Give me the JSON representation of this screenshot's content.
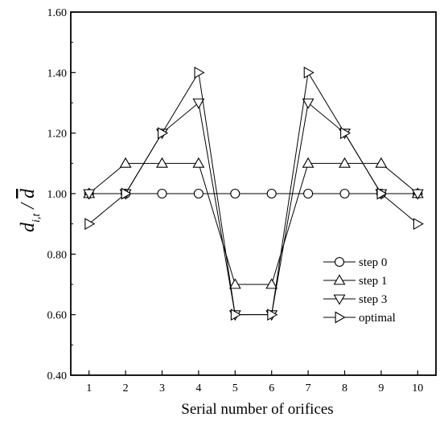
{
  "chart_data": {
    "type": "line",
    "xlabel": "Serial number of orifices",
    "ylabel": {
      "main": "d",
      "sub": "i,t",
      "sep": " / ",
      "bar": "d"
    },
    "x": [
      1,
      2,
      3,
      4,
      5,
      6,
      7,
      8,
      9,
      10
    ],
    "xlim": [
      0.5,
      10.5
    ],
    "ylim": [
      0.4,
      1.6
    ],
    "x_ticks": [
      "1",
      "2",
      "3",
      "4",
      "5",
      "6",
      "7",
      "8",
      "9",
      "10"
    ],
    "y_ticks": [
      "0.40",
      "0.60",
      "0.80",
      "1.00",
      "1.20",
      "1.40",
      "1.60"
    ],
    "grid": false,
    "legend_position": "lower-right",
    "series": [
      {
        "name": "step 0",
        "marker": "circle",
        "values": [
          1.0,
          1.0,
          1.0,
          1.0,
          1.0,
          1.0,
          1.0,
          1.0,
          1.0,
          1.0
        ]
      },
      {
        "name": "step 1",
        "marker": "triangle-up",
        "values": [
          1.0,
          1.1,
          1.1,
          1.1,
          0.7,
          0.7,
          1.1,
          1.1,
          1.1,
          1.0
        ]
      },
      {
        "name": "step 3",
        "marker": "triangle-down",
        "values": [
          1.0,
          1.0,
          1.2,
          1.3,
          0.6,
          0.6,
          1.3,
          1.2,
          1.0,
          1.0
        ]
      },
      {
        "name": "optimal",
        "marker": "triangle-right",
        "values": [
          0.9,
          1.0,
          1.2,
          1.4,
          0.6,
          0.6,
          1.4,
          1.2,
          1.0,
          0.9
        ]
      }
    ]
  }
}
